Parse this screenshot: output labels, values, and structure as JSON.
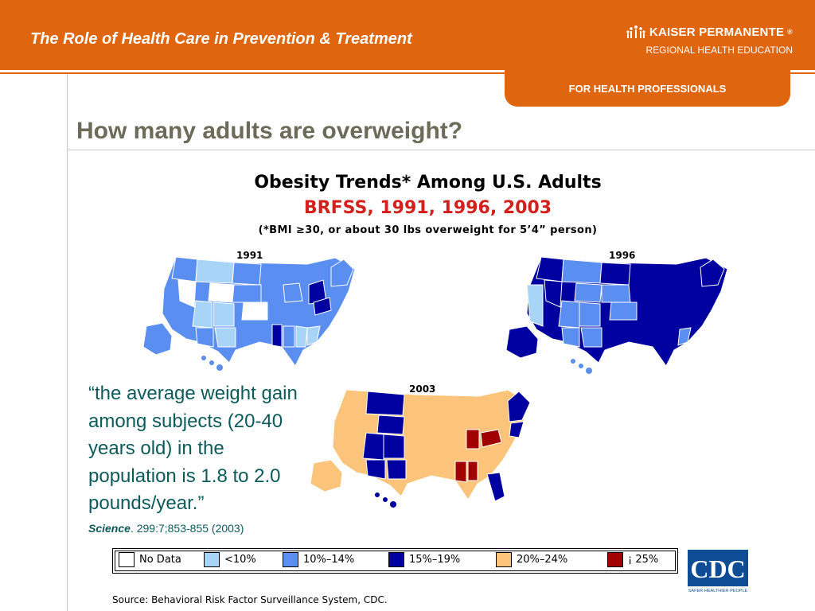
{
  "header": {
    "title": "The Role of Health Care in Prevention & Treatment",
    "brand_name": "KAISER PERMANENTE",
    "brand_mark": "®",
    "brand_sub": "REGIONAL HEALTH EDUCATION",
    "tab_label": "FOR HEALTH PROFESSIONALS"
  },
  "page": {
    "heading": "How many adults are overweight?"
  },
  "figure": {
    "title": "Obesity Trends* Among U.S. Adults",
    "subtitle": "BRFSS, 1991, 1996, 2003",
    "note": "(*BMI ≥30, or about 30 lbs overweight for 5’4” person)",
    "maps": [
      {
        "year": "1991"
      },
      {
        "year": "1996"
      },
      {
        "year": "2003"
      }
    ]
  },
  "quote": {
    "text": "“the average weight gain among subjects (20-40 years old) in the population is 1.8 to 2.0 pounds/year.”",
    "journal": "Science",
    "ref": ". 299:7;853-855 (2003)"
  },
  "legend": {
    "items": [
      {
        "label": "No Data",
        "color": "#ffffff"
      },
      {
        "label": "<10%",
        "color": "#a8d4f8"
      },
      {
        "label": "10%–14%",
        "color": "#5a8ef0"
      },
      {
        "label": "15%–19%",
        "color": "#0000a0"
      },
      {
        "label": "20%–24%",
        "color": "#fcc47a"
      },
      {
        "label": "¡ 25%",
        "color": "#a00000"
      }
    ]
  },
  "cdc_logo": {
    "text": "CDC",
    "tagline": "SAFER·HEALTHIER·PEOPLE"
  },
  "source": "Source: Behavioral Risk Factor Surveillance System, CDC.",
  "colors": {
    "accent": "#e0650f",
    "heading": "#6b6b59",
    "quote": "#0c5b5a",
    "subtitle_red": "#d4201c"
  }
}
